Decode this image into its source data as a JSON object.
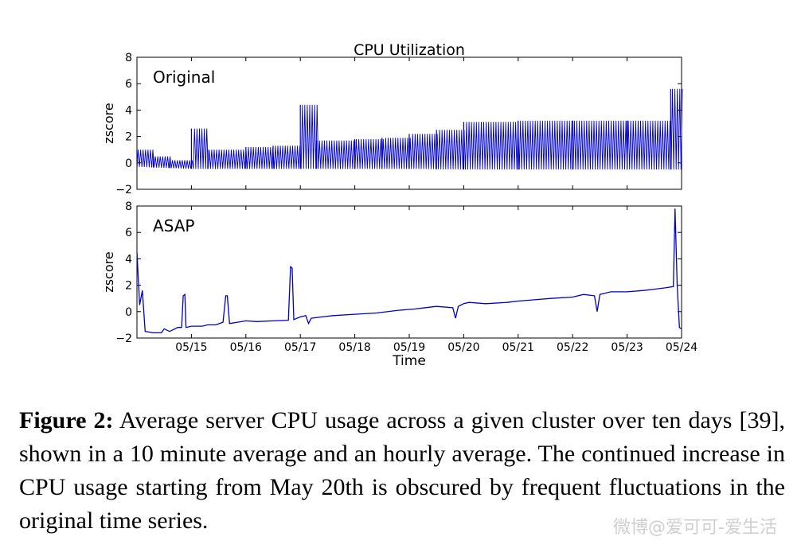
{
  "chart_data": [
    {
      "type": "line",
      "title": "CPU Utilization",
      "panel_label": "Original",
      "ylabel": "zscore",
      "ylim": [
        -2,
        8
      ],
      "yticks": [
        "−2",
        "0",
        "2",
        "4",
        "6",
        "8"
      ],
      "xlim": [
        "05/14 02:00",
        "05/24 02:00"
      ],
      "series": [
        {
          "color": "#0000cc",
          "description_free": true,
          "baseline": [
            [
              0.0,
              -0.3
            ],
            [
              1.0,
              -0.45
            ],
            [
              2.0,
              -0.45
            ],
            [
              3.0,
              -0.45
            ],
            [
              4.0,
              -0.45
            ],
            [
              5.0,
              -0.45
            ],
            [
              6.0,
              -0.5
            ],
            [
              7.0,
              -0.5
            ],
            [
              8.0,
              -0.5
            ],
            [
              9.0,
              -0.5
            ],
            [
              10.0,
              -0.5
            ]
          ],
          "daily_peaks": [
            [
              0.0,
              1.0
            ],
            [
              0.3,
              0.5
            ],
            [
              0.6,
              0.2
            ],
            [
              1.0,
              2.6
            ],
            [
              1.3,
              1.0
            ],
            [
              2.0,
              1.2
            ],
            [
              2.5,
              1.3
            ],
            [
              3.0,
              4.4
            ],
            [
              3.3,
              1.7
            ],
            [
              4.0,
              1.8
            ],
            [
              4.5,
              1.9
            ],
            [
              5.0,
              2.2
            ],
            [
              5.5,
              2.5
            ],
            [
              6.0,
              3.1
            ],
            [
              7.0,
              3.2
            ],
            [
              8.0,
              3.2
            ],
            [
              9.0,
              3.2
            ],
            [
              9.8,
              5.6
            ],
            [
              10.0,
              0.3
            ]
          ]
        }
      ]
    },
    {
      "type": "line",
      "panel_label": "ASAP",
      "ylabel": "zscore",
      "xlabel": "Time",
      "ylim": [
        -2,
        8
      ],
      "yticks": [
        "−2",
        "0",
        "2",
        "4",
        "6",
        "8"
      ],
      "xticks": [
        "05/15",
        "05/16",
        "05/17",
        "05/18",
        "05/19",
        "05/20",
        "05/21",
        "05/22",
        "05/23",
        "05/24"
      ],
      "series": [
        {
          "color": "#0000cc",
          "points": [
            [
              0.0,
              4.5
            ],
            [
              0.05,
              0.5
            ],
            [
              0.1,
              1.6
            ],
            [
              0.15,
              -1.5
            ],
            [
              0.3,
              -1.6
            ],
            [
              0.45,
              -1.6
            ],
            [
              0.5,
              -1.3
            ],
            [
              0.6,
              -1.5
            ],
            [
              0.75,
              -1.2
            ],
            [
              0.82,
              -1.2
            ],
            [
              0.85,
              1.2
            ],
            [
              0.88,
              1.3
            ],
            [
              0.9,
              -1.2
            ],
            [
              1.0,
              -1.1
            ],
            [
              1.2,
              -1.1
            ],
            [
              1.3,
              -1.0
            ],
            [
              1.45,
              -1.0
            ],
            [
              1.58,
              -0.8
            ],
            [
              1.63,
              1.2
            ],
            [
              1.66,
              1.2
            ],
            [
              1.7,
              -0.9
            ],
            [
              1.85,
              -0.8
            ],
            [
              2.0,
              -0.7
            ],
            [
              2.2,
              -0.75
            ],
            [
              2.5,
              -0.7
            ],
            [
              2.78,
              -0.65
            ],
            [
              2.82,
              3.4
            ],
            [
              2.85,
              3.3
            ],
            [
              2.88,
              -0.6
            ],
            [
              3.0,
              -0.4
            ],
            [
              3.1,
              -0.3
            ],
            [
              3.15,
              -0.9
            ],
            [
              3.2,
              -0.5
            ],
            [
              3.4,
              -0.4
            ],
            [
              3.6,
              -0.3
            ],
            [
              4.0,
              -0.2
            ],
            [
              4.4,
              -0.1
            ],
            [
              4.8,
              0.1
            ],
            [
              5.1,
              0.2
            ],
            [
              5.3,
              0.3
            ],
            [
              5.5,
              0.4
            ],
            [
              5.8,
              0.3
            ],
            [
              5.85,
              -0.5
            ],
            [
              5.9,
              0.4
            ],
            [
              6.0,
              0.6
            ],
            [
              6.1,
              0.7
            ],
            [
              6.4,
              0.6
            ],
            [
              6.8,
              0.7
            ],
            [
              7.0,
              0.8
            ],
            [
              7.3,
              0.9
            ],
            [
              7.6,
              1.0
            ],
            [
              8.0,
              1.1
            ],
            [
              8.2,
              1.3
            ],
            [
              8.4,
              1.2
            ],
            [
              8.45,
              0.0
            ],
            [
              8.5,
              1.3
            ],
            [
              8.7,
              1.5
            ],
            [
              9.0,
              1.5
            ],
            [
              9.3,
              1.6
            ],
            [
              9.5,
              1.7
            ],
            [
              9.7,
              1.8
            ],
            [
              9.85,
              1.9
            ],
            [
              9.88,
              7.8
            ],
            [
              9.92,
              2.0
            ],
            [
              9.96,
              -1.2
            ],
            [
              10.0,
              -1.3
            ]
          ]
        }
      ]
    }
  ],
  "caption": {
    "label": "Figure 2:",
    "text": "Average server CPU usage across a given cluster over ten days [39], shown in a 10 minute average and an hourly average. The continued increase in CPU usage starting from May 20th is obscured by frequent fluctuations in the original time series."
  },
  "watermark": "微博@爱可可-爱生活"
}
